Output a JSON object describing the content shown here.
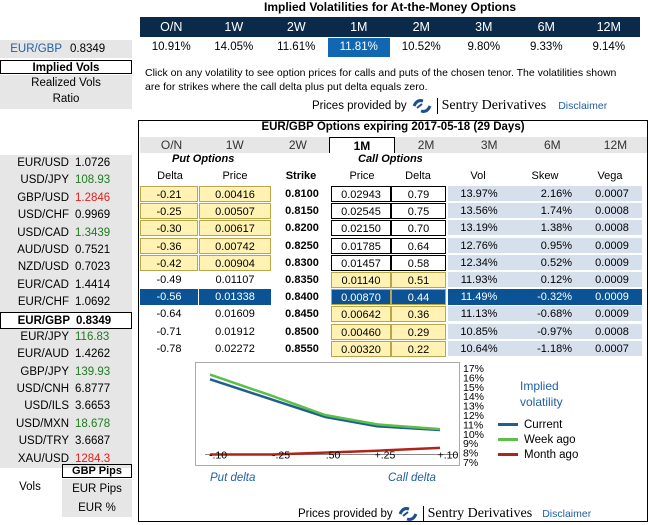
{
  "top": {
    "title": "Implied Volatilities for At-the-Money Options",
    "tenors": [
      "O/N",
      "1W",
      "2W",
      "1M",
      "2M",
      "3M",
      "6M",
      "12M"
    ],
    "values": [
      "10.91%",
      "14.05%",
      "11.61%",
      "11.81%",
      "10.52%",
      "9.80%",
      "9.33%",
      "9.14%"
    ],
    "selected_index": 3,
    "note": "Click on any volatility to see option prices for calls and puts of the chosen tenor. The volatilities shown are for strikes where the call delta plus put delta equals zero.",
    "provided": "Prices provided by",
    "logo_text": "Sentry Derivatives",
    "disclaimer": "Disclaimer"
  },
  "left": {
    "pair": "EUR/GBP",
    "pair_value": "0.8349",
    "implied_vols": "Implied Vols",
    "realized_vols": "Realized Vols",
    "ratio": "Ratio",
    "fx": [
      {
        "name": "EUR/USD",
        "value": "1.0726",
        "color": "#000000"
      },
      {
        "name": "USD/JPY",
        "value": "108.93",
        "color": "#1e7b1e"
      },
      {
        "name": "GBP/USD",
        "value": "1.2846",
        "color": "#e0201c"
      },
      {
        "name": "USD/CHF",
        "value": "0.9969",
        "color": "#000000"
      },
      {
        "name": "USD/CAD",
        "value": "1.3439",
        "color": "#1e7b1e"
      },
      {
        "name": "AUD/USD",
        "value": "0.7521",
        "color": "#000000"
      },
      {
        "name": "NZD/USD",
        "value": "0.7023",
        "color": "#000000"
      },
      {
        "name": "EUR/CAD",
        "value": "1.4414",
        "color": "#000000"
      },
      {
        "name": "EUR/CHF",
        "value": "1.0692",
        "color": "#000000"
      },
      {
        "name": "EUR/GBP",
        "value": "0.8349",
        "color": "#000000",
        "selected": true
      },
      {
        "name": "EUR/JPY",
        "value": "116.83",
        "color": "#1e7b1e"
      },
      {
        "name": "EUR/AUD",
        "value": "1.4262",
        "color": "#000000"
      },
      {
        "name": "GBP/JPY",
        "value": "139.93",
        "color": "#1e7b1e"
      },
      {
        "name": "USD/CNH",
        "value": "6.8777",
        "color": "#000000"
      },
      {
        "name": "USD/ILS",
        "value": "3.6653",
        "color": "#000000"
      },
      {
        "name": "USD/MXN",
        "value": "18.678",
        "color": "#1e7b1e"
      },
      {
        "name": "USD/TRY",
        "value": "3.6687",
        "color": "#000000"
      },
      {
        "name": "XAU/USD",
        "value": "1284.3",
        "color": "#e0201c"
      }
    ],
    "gbp_pips": "GBP Pips",
    "vols": "Vols",
    "eur_pips": "EUR Pips",
    "eur_pct": "EUR %"
  },
  "options": {
    "title": "EUR/GBP Options expiring 2017-05-18 (29 Days)",
    "tabs": [
      "O/N",
      "1W",
      "2W",
      "1M",
      "2M",
      "3M",
      "6M",
      "12M"
    ],
    "selected_tab": 3,
    "put_header": "Put Options",
    "call_header": "Call Options",
    "col_delta": "Delta",
    "col_price": "Price",
    "col_strike": "Strike",
    "col_vol": "Vol",
    "col_skew": "Skew",
    "col_vega": "Vega",
    "rows": [
      {
        "put_delta": "-0.21",
        "put_price": "0.00416",
        "strike": "0.8100",
        "call_price": "0.02943",
        "call_delta": "0.79",
        "vol": "13.97%",
        "skew": "2.16%",
        "vega": "0.0007"
      },
      {
        "put_delta": "-0.25",
        "put_price": "0.00507",
        "strike": "0.8150",
        "call_price": "0.02545",
        "call_delta": "0.75",
        "vol": "13.56%",
        "skew": "1.74%",
        "vega": "0.0008"
      },
      {
        "put_delta": "-0.30",
        "put_price": "0.00617",
        "strike": "0.8200",
        "call_price": "0.02150",
        "call_delta": "0.70",
        "vol": "13.19%",
        "skew": "1.38%",
        "vega": "0.0008"
      },
      {
        "put_delta": "-0.36",
        "put_price": "0.00742",
        "strike": "0.8250",
        "call_price": "0.01785",
        "call_delta": "0.64",
        "vol": "12.76%",
        "skew": "0.95%",
        "vega": "0.0009"
      },
      {
        "put_delta": "-0.42",
        "put_price": "0.00904",
        "strike": "0.8300",
        "call_price": "0.01457",
        "call_delta": "0.58",
        "vol": "12.34%",
        "skew": "0.52%",
        "vega": "0.0009"
      },
      {
        "put_delta": "-0.49",
        "put_price": "0.01107",
        "strike": "0.8350",
        "call_price": "0.01140",
        "call_delta": "0.51",
        "vol": "11.93%",
        "skew": "0.12%",
        "vega": "0.0009"
      },
      {
        "put_delta": "-0.56",
        "put_price": "0.01338",
        "strike": "0.8400",
        "call_price": "0.00870",
        "call_delta": "0.44",
        "vol": "11.49%",
        "skew": "-0.32%",
        "vega": "0.0009"
      },
      {
        "put_delta": "-0.64",
        "put_price": "0.01609",
        "strike": "0.8450",
        "call_price": "0.00642",
        "call_delta": "0.36",
        "vol": "11.13%",
        "skew": "-0.68%",
        "vega": "0.0009"
      },
      {
        "put_delta": "-0.71",
        "put_price": "0.01912",
        "strike": "0.8500",
        "call_price": "0.00460",
        "call_delta": "0.29",
        "vol": "10.85%",
        "skew": "-0.97%",
        "vega": "0.0008"
      },
      {
        "put_delta": "-0.78",
        "put_price": "0.02272",
        "strike": "0.8550",
        "call_price": "0.00320",
        "call_delta": "0.22",
        "vol": "10.64%",
        "skew": "-1.18%",
        "vega": "0.0007"
      }
    ],
    "selected_row": 6,
    "put_yellow_rows": [
      0,
      1,
      2,
      3,
      4
    ],
    "call_yellow_rows": [
      5,
      6,
      7,
      8,
      9
    ]
  },
  "chart_data": {
    "type": "line",
    "x_tick_labels": [
      "-.10",
      "-.25",
      ".50",
      "+.25",
      "+.10"
    ],
    "y_tick_labels": [
      "17%",
      "16%",
      "15%",
      "14%",
      "13%",
      "12%",
      "11%",
      "10%",
      "9%",
      "8%",
      "7%"
    ],
    "ylim": [
      7,
      17
    ],
    "x_left_label": "Put delta",
    "x_right_label": "Call delta",
    "legend_title": "Implied volatility",
    "series": [
      {
        "name": "Current",
        "color": "#1f5f8f",
        "values": [
          15.8,
          13.6,
          11.8,
          10.8,
          10.4
        ]
      },
      {
        "name": "Week ago",
        "color": "#5bbf4a",
        "values": [
          16.3,
          14.0,
          12.0,
          11.0,
          10.5
        ]
      },
      {
        "name": "Month ago",
        "color": "#b02418",
        "values": [
          7.8,
          7.8,
          8.0,
          8.2,
          8.5
        ]
      }
    ]
  },
  "bottom": {
    "provided": "Prices provided by",
    "logo_text": "Sentry Derivatives",
    "disclaimer": "Disclaimer"
  }
}
